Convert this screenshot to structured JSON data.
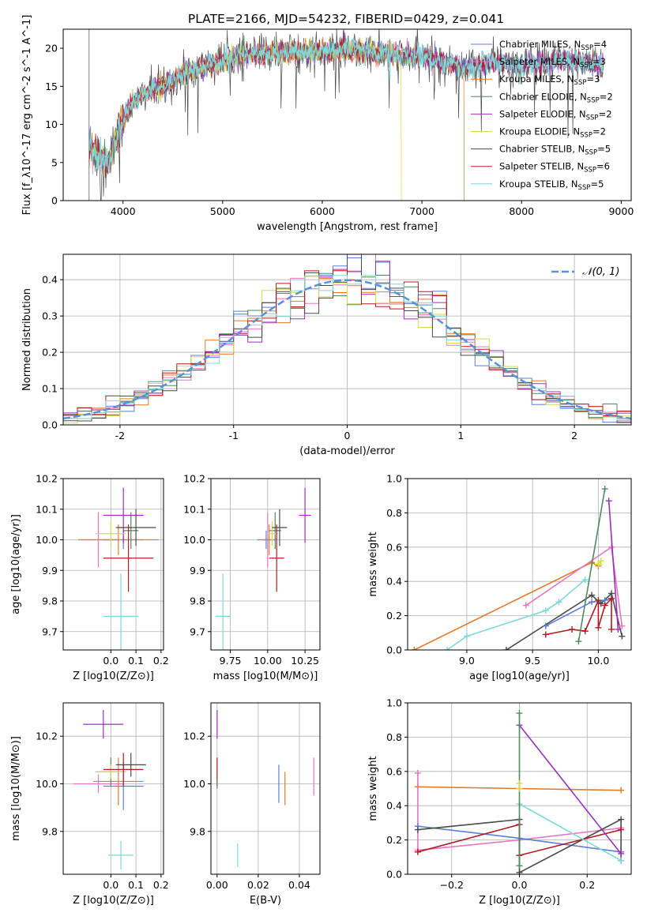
{
  "title": "PLATE=2166, MJD=54232, FIBERID=0429, z=0.041",
  "colors": {
    "c0": "#5b7fd6",
    "c1": "#e377c2",
    "c2": "#e07b2a",
    "c3": "#4f8a63",
    "c4": "#9b30b8",
    "c5": "#d4db4a",
    "c6": "#4a4a4a",
    "c7": "#b01c22",
    "c8": "#7fd8d8",
    "normal": "#5b8fd6"
  },
  "chart_data": [
    {
      "type": "line",
      "name": "spectrum",
      "xlabel": "wavelength [Angstrom, rest frame]",
      "ylabel": "Flux [f_λ10^-17 erg cm^-2 s^-1 A^-1]",
      "xlim": [
        3400,
        9100
      ],
      "ylim": [
        0,
        22.5
      ],
      "xticks": [
        4000,
        5000,
        6000,
        7000,
        8000,
        9000
      ],
      "yticks": [
        0,
        5,
        10,
        15,
        20
      ],
      "legend_position": "upper-right",
      "legend": [
        {
          "label": "Chabrier MILES, N",
          "sub": "SSP",
          "suffix": "=4",
          "color": "c0"
        },
        {
          "label": "Salpeter MILES, N",
          "sub": "SSP",
          "suffix": "=3",
          "color": "c1"
        },
        {
          "label": "Kroupa MILES, N",
          "sub": "SSP",
          "suffix": "=3",
          "color": "c2"
        },
        {
          "label": "Chabrier ELODIE, N",
          "sub": "SSP",
          "suffix": "=2",
          "color": "c3"
        },
        {
          "label": "Salpeter ELODIE, N",
          "sub": "SSP",
          "suffix": "=2",
          "color": "c4"
        },
        {
          "label": "Kroupa ELODIE, N",
          "sub": "SSP",
          "suffix": "=2",
          "color": "c5"
        },
        {
          "label": "Chabrier STELIB, N",
          "sub": "SSP",
          "suffix": "=5",
          "color": "c6"
        },
        {
          "label": "Salpeter STELIB, N",
          "sub": "SSP",
          "suffix": "=6",
          "color": "c7"
        },
        {
          "label": "Kroupa STELIB, N",
          "sub": "SSP",
          "suffix": "=5",
          "color": "c8"
        }
      ],
      "continuum": [
        [
          3660,
          7.2
        ],
        [
          3750,
          6.0
        ],
        [
          3850,
          4.8
        ],
        [
          3950,
          9.0
        ],
        [
          4050,
          12.0
        ],
        [
          4200,
          14.0
        ],
        [
          4400,
          15.0
        ],
        [
          4600,
          16.5
        ],
        [
          4800,
          17.5
        ],
        [
          5000,
          18.3
        ],
        [
          5200,
          19.0
        ],
        [
          5400,
          19.3
        ],
        [
          5600,
          19.6
        ],
        [
          5800,
          19.6
        ],
        [
          6000,
          19.5
        ],
        [
          6200,
          19.8
        ],
        [
          6400,
          19.6
        ],
        [
          6600,
          19.3
        ],
        [
          6800,
          19.0
        ],
        [
          7000,
          18.9
        ],
        [
          7200,
          18.3
        ],
        [
          7400,
          17.5
        ],
        [
          7600,
          17.9
        ],
        [
          7800,
          18.2
        ],
        [
          8000,
          17.6
        ],
        [
          8200,
          18.1
        ],
        [
          8400,
          18.3
        ],
        [
          8600,
          18.2
        ],
        [
          8820,
          17.8
        ]
      ],
      "dropouts": [
        {
          "color": "c5",
          "x": 6790,
          "y": 0
        },
        {
          "color": "c2",
          "x": 7420,
          "y": 0
        }
      ]
    },
    {
      "type": "step",
      "name": "residual-histogram",
      "xlabel": "(data-model)/error",
      "ylabel": "Normed distribution",
      "xlim": [
        -2.5,
        2.5
      ],
      "ylim": [
        0,
        0.47
      ],
      "xticks": [
        -2,
        -1,
        0,
        1,
        2
      ],
      "yticks": [
        0,
        0.1,
        0.2,
        0.3,
        0.4
      ],
      "bins": 40,
      "legend": [
        {
          "label": "𝒩(0, 1)",
          "color": "normal",
          "style": "dashed"
        }
      ],
      "series_colors": [
        "c0",
        "c1",
        "c2",
        "c3",
        "c4",
        "c5",
        "c6",
        "c7",
        "c8"
      ]
    },
    {
      "type": "scatter",
      "name": "age-vs-Z",
      "xlabel": "Z [log10(Z/Z⊙)]",
      "ylabel": "age [log10(age/yr)]",
      "xlim": [
        -0.19,
        0.21
      ],
      "ylim": [
        9.64,
        10.2
      ],
      "xticks": [
        0.0,
        0.1,
        0.2
      ],
      "xtick_labels": [
        "0.0",
        "0.1",
        "0.2"
      ],
      "yticks": [
        9.7,
        9.8,
        9.9,
        10.0,
        10.1,
        10.2
      ],
      "ytick_labels": [
        "9.7",
        "9.8",
        "9.9",
        "10.0",
        "10.1",
        "10.2"
      ],
      "points": [
        {
          "color": "c0",
          "x": 0.05,
          "y": 10.0,
          "xerr": 0.08,
          "yerr": 0.03
        },
        {
          "color": "c1",
          "x": -0.05,
          "y": 10.0,
          "xerr": 0.08,
          "yerr": 0.09
        },
        {
          "color": "c2",
          "x": 0.03,
          "y": 10.0,
          "xerr": 0.16,
          "yerr": 0.05
        },
        {
          "color": "c3",
          "x": 0.08,
          "y": 10.03,
          "xerr": 0.03,
          "yerr": 0.06
        },
        {
          "color": "c4",
          "x": 0.05,
          "y": 10.08,
          "xerr": 0.08,
          "yerr": 0.09
        },
        {
          "color": "c5",
          "x": 0.0,
          "y": 10.02,
          "xerr": 0.06,
          "yerr": 0.04
        },
        {
          "color": "c6",
          "x": 0.1,
          "y": 10.04,
          "xerr": 0.08,
          "yerr": 0.06
        },
        {
          "color": "c7",
          "x": 0.07,
          "y": 9.94,
          "xerr": 0.1,
          "yerr": 0.11
        },
        {
          "color": "c8",
          "x": 0.04,
          "y": 9.75,
          "xerr": 0.07,
          "yerr": 0.14
        }
      ]
    },
    {
      "type": "scatter",
      "name": "age-vs-mass",
      "xlabel": "mass [log10(M/M⊙)]",
      "ylabel": "",
      "xlim": [
        9.62,
        10.35
      ],
      "ylim": [
        9.64,
        10.2
      ],
      "xticks": [
        9.75,
        10.0,
        10.25
      ],
      "xtick_labels": [
        "9.75",
        "10.00",
        "10.25"
      ],
      "yticks": [
        9.7,
        9.8,
        9.9,
        10.0,
        10.1,
        10.2
      ],
      "ytick_labels": [
        "9.7",
        "9.8",
        "9.9",
        "10.0",
        "10.1",
        "10.2"
      ],
      "points": [
        {
          "color": "c0",
          "x": 9.99,
          "y": 10.0,
          "xerr": 0.06,
          "yerr": 0.03
        },
        {
          "color": "c1",
          "x": 10.0,
          "y": 10.0,
          "xerr": 0.03,
          "yerr": 0.09
        },
        {
          "color": "c2",
          "x": 10.01,
          "y": 10.0,
          "xerr": 0.05,
          "yerr": 0.05
        },
        {
          "color": "c3",
          "x": 10.05,
          "y": 10.03,
          "xerr": 0.04,
          "yerr": 0.06
        },
        {
          "color": "c4",
          "x": 10.25,
          "y": 10.08,
          "xerr": 0.04,
          "yerr": 0.09
        },
        {
          "color": "c5",
          "x": 10.03,
          "y": 10.02,
          "xerr": 0.04,
          "yerr": 0.04
        },
        {
          "color": "c6",
          "x": 10.08,
          "y": 10.04,
          "xerr": 0.05,
          "yerr": 0.06
        },
        {
          "color": "c7",
          "x": 10.06,
          "y": 9.94,
          "xerr": 0.05,
          "yerr": 0.11
        },
        {
          "color": "c8",
          "x": 9.7,
          "y": 9.75,
          "xerr": 0.05,
          "yerr": 0.14
        }
      ]
    },
    {
      "type": "line",
      "name": "mass-weight-vs-age",
      "xlabel": "age [log10(age/yr)]",
      "ylabel": "mass weight",
      "xlim": [
        8.55,
        10.25
      ],
      "ylim": [
        0,
        1.0
      ],
      "xticks": [
        9.0,
        9.5,
        10.0
      ],
      "xtick_labels": [
        "9.0",
        "9.5",
        "10.0"
      ],
      "yticks": [
        0,
        0.2,
        0.4,
        0.6,
        0.8,
        1.0
      ],
      "ytick_labels": [
        "0.0",
        "0.2",
        "0.4",
        "0.6",
        "0.8",
        "1.0"
      ],
      "series": [
        {
          "color": "c2",
          "points": [
            [
              8.6,
              0.0
            ],
            [
              9.95,
              0.51
            ],
            [
              10.0,
              0.49
            ]
          ]
        },
        {
          "color": "c8",
          "points": [
            [
              8.85,
              0.0
            ],
            [
              9.0,
              0.08
            ],
            [
              9.6,
              0.23
            ],
            [
              9.7,
              0.28
            ],
            [
              9.9,
              0.41
            ]
          ]
        },
        {
          "color": "c6",
          "points": [
            [
              9.3,
              0.0
            ],
            [
              9.95,
              0.32
            ],
            [
              10.02,
              0.27
            ],
            [
              10.1,
              0.33
            ],
            [
              10.18,
              0.08
            ]
          ]
        },
        {
          "color": "c0",
          "points": [
            [
              9.6,
              0.14
            ],
            [
              9.95,
              0.28
            ],
            [
              10.05,
              0.29
            ],
            [
              10.1,
              0.3
            ]
          ]
        },
        {
          "color": "c1",
          "points": [
            [
              9.45,
              0.26
            ],
            [
              10.1,
              0.6
            ],
            [
              10.18,
              0.14
            ]
          ]
        },
        {
          "color": "c7",
          "points": [
            [
              9.6,
              0.09
            ],
            [
              9.8,
              0.12
            ],
            [
              9.9,
              0.11
            ],
            [
              10.0,
              0.29
            ],
            [
              10.0,
              0.13
            ],
            [
              10.05,
              0.26
            ],
            [
              10.1,
              0.3
            ],
            [
              10.1,
              0.12
            ]
          ]
        },
        {
          "color": "c3",
          "points": [
            [
              9.85,
              0.05
            ],
            [
              10.05,
              0.94
            ]
          ]
        },
        {
          "color": "c4",
          "points": [
            [
              10.08,
              0.87
            ],
            [
              10.15,
              0.12
            ]
          ]
        },
        {
          "color": "c5",
          "points": [
            [
              10.0,
              0.5
            ],
            [
              10.02,
              0.52
            ]
          ]
        }
      ]
    },
    {
      "type": "scatter",
      "name": "mass-vs-Z",
      "xlabel": "Z [log10(Z/Z⊙)]",
      "ylabel": "mass [log10(M/M⊙)]",
      "xlim": [
        -0.19,
        0.21
      ],
      "ylim": [
        9.62,
        10.34
      ],
      "xticks": [
        0.0,
        0.1,
        0.2
      ],
      "xtick_labels": [
        "0.0",
        "0.1",
        "0.2"
      ],
      "yticks": [
        9.8,
        10.0,
        10.2
      ],
      "ytick_labels": [
        "9.8",
        "10.0",
        "10.2"
      ],
      "points": [
        {
          "color": "c0",
          "x": 0.05,
          "y": 9.99,
          "xerr": 0.08,
          "yerr": 0.1
        },
        {
          "color": "c1",
          "x": -0.05,
          "y": 10.0,
          "xerr": 0.1,
          "yerr": 0.04
        },
        {
          "color": "c2",
          "x": 0.03,
          "y": 10.01,
          "xerr": 0.1,
          "yerr": 0.1
        },
        {
          "color": "c3",
          "x": 0.0,
          "y": 10.05,
          "xerr": 0.06,
          "yerr": 0.06
        },
        {
          "color": "c4",
          "x": -0.03,
          "y": 10.25,
          "xerr": 0.08,
          "yerr": 0.06
        },
        {
          "color": "c5",
          "x": 0.0,
          "y": 10.05,
          "xerr": 0.06,
          "yerr": 0.03
        },
        {
          "color": "c6",
          "x": 0.08,
          "y": 10.08,
          "xerr": 0.06,
          "yerr": 0.05
        },
        {
          "color": "c7",
          "x": 0.05,
          "y": 10.06,
          "xerr": 0.08,
          "yerr": 0.07
        },
        {
          "color": "c8",
          "x": 0.04,
          "y": 9.7,
          "xerr": 0.05,
          "yerr": 0.06
        }
      ]
    },
    {
      "type": "scatter",
      "name": "mass-vs-EBV",
      "xlabel": "E(B-V)",
      "ylabel": "",
      "xlim": [
        -0.003,
        0.05
      ],
      "ylim": [
        9.62,
        10.34
      ],
      "xticks": [
        0.0,
        0.02,
        0.04
      ],
      "xtick_labels": [
        "0.00",
        "0.02",
        "0.04"
      ],
      "yticks": [
        9.8,
        10.0,
        10.2
      ],
      "ytick_labels": [
        "9.8",
        "10.0",
        "10.2"
      ],
      "points": [
        {
          "color": "c4",
          "x": 0.0,
          "y": 10.25,
          "yerr": 0.06
        },
        {
          "color": "c7",
          "x": 0.0,
          "y": 10.05,
          "yerr": 0.06
        },
        {
          "color": "c3",
          "x": 0.0,
          "y": 10.0,
          "yerr": 0.02
        },
        {
          "color": "c8",
          "x": 0.01,
          "y": 9.7,
          "yerr": 0.05
        },
        {
          "color": "c0",
          "x": 0.03,
          "y": 10.0,
          "yerr": 0.08
        },
        {
          "color": "c2",
          "x": 0.033,
          "y": 9.98,
          "yerr": 0.07
        },
        {
          "color": "c1",
          "x": 0.047,
          "y": 10.03,
          "yerr": 0.08
        }
      ]
    },
    {
      "type": "line",
      "name": "mass-weight-vs-Z",
      "xlabel": "Z [log10(Z/Z⊙)]",
      "ylabel": "mass weight",
      "xlim": [
        -0.33,
        0.33
      ],
      "ylim": [
        0,
        1.0
      ],
      "xticks": [
        -0.2,
        0.0,
        0.2
      ],
      "xtick_labels": [
        "−0.2",
        "0.0",
        "0.2"
      ],
      "yticks": [
        0,
        0.2,
        0.4,
        0.6,
        0.8,
        1.0
      ],
      "ytick_labels": [
        "0.0",
        "0.2",
        "0.4",
        "0.6",
        "0.8",
        "1.0"
      ],
      "series": [
        {
          "color": "c2",
          "points": [
            [
              -0.3,
              0.51
            ],
            [
              0.3,
              0.49
            ]
          ]
        },
        {
          "color": "c1",
          "points": [
            [
              -0.3,
              0.59
            ],
            [
              -0.3,
              0.14
            ],
            [
              0.0,
              0.2
            ],
            [
              0.3,
              0.27
            ]
          ]
        },
        {
          "color": "c0",
          "points": [
            [
              -0.3,
              0.28
            ],
            [
              0.0,
              0.21
            ],
            [
              0.3,
              0.13
            ]
          ]
        },
        {
          "color": "c6",
          "points": [
            [
              -0.3,
              0.26
            ],
            [
              0.0,
              0.32
            ],
            [
              0.0,
              0.01
            ],
            [
              0.3,
              0.32
            ],
            [
              0.3,
              0.08
            ]
          ]
        },
        {
          "color": "c7",
          "points": [
            [
              -0.3,
              0.13
            ],
            [
              0.0,
              0.29
            ],
            [
              0.0,
              0.11
            ],
            [
              0.3,
              0.26
            ]
          ]
        },
        {
          "color": "c8",
          "points": [
            [
              0.0,
              0.41
            ],
            [
              0.3,
              0.08
            ]
          ]
        },
        {
          "color": "c4",
          "points": [
            [
              0.0,
              0.87
            ],
            [
              0.3,
              0.12
            ]
          ]
        },
        {
          "color": "c3",
          "points": [
            [
              0.0,
              0.94
            ],
            [
              0.0,
              0.05
            ]
          ]
        },
        {
          "color": "c5",
          "points": [
            [
              0.0,
              0.5
            ],
            [
              0.0,
              0.53
            ]
          ]
        }
      ]
    }
  ]
}
